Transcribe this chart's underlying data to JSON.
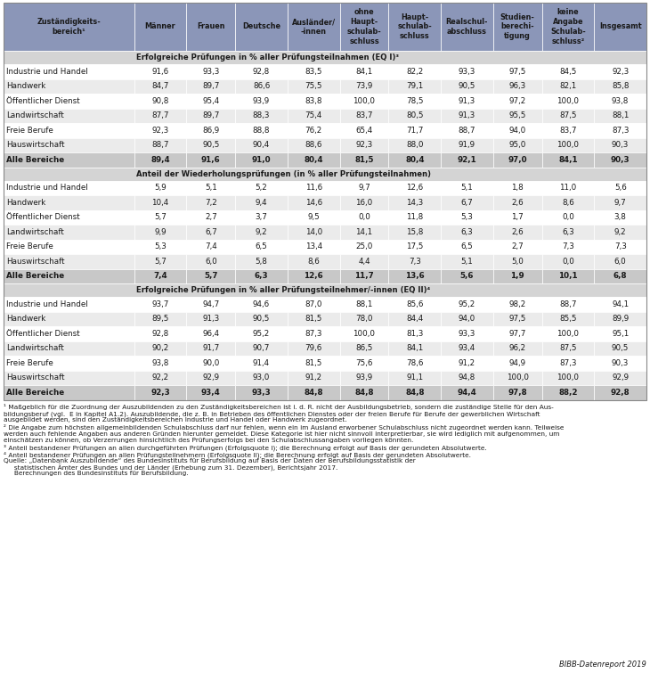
{
  "header_bg": "#8B96B8",
  "section_bg": "#D4D4D4",
  "row_light": "#FFFFFF",
  "row_dark": "#EBEBEB",
  "bold_row_bg": "#C8C8C8",
  "col_headers": [
    "Zuständigkeits-\nbereich¹",
    "Männer",
    "Frauen",
    "Deutsche",
    "Ausländer/\n-innen",
    "ohne\nHaupt-\nschulab-\nschluss",
    "Haupt-\nschulab-\nschluss",
    "Realschul-\nabschluss",
    "Studien-\nberechi-\ntigung",
    "keine\nAngabe\nSchulab-\nschluss²",
    "Insgesamt"
  ],
  "section1_title": "Erfolgreiche Prüfungen in % aller Prüfungsteilnahmen (EQ I)³",
  "section1_rows": [
    [
      "Industrie und Handel",
      "91,6",
      "93,3",
      "92,8",
      "83,5",
      "84,1",
      "82,2",
      "93,3",
      "97,5",
      "84,5",
      "92,3"
    ],
    [
      "Handwerk",
      "84,7",
      "89,7",
      "86,6",
      "75,5",
      "73,9",
      "79,1",
      "90,5",
      "96,3",
      "82,1",
      "85,8"
    ],
    [
      "Öffentlicher Dienst",
      "90,8",
      "95,4",
      "93,9",
      "83,8",
      "100,0",
      "78,5",
      "91,3",
      "97,2",
      "100,0",
      "93,8"
    ],
    [
      "Landwirtschaft",
      "87,7",
      "89,7",
      "88,3",
      "75,4",
      "83,7",
      "80,5",
      "91,3",
      "95,5",
      "87,5",
      "88,1"
    ],
    [
      "Freie Berufe",
      "92,3",
      "86,9",
      "88,8",
      "76,2",
      "65,4",
      "71,7",
      "88,7",
      "94,0",
      "83,7",
      "87,3"
    ],
    [
      "Hauswirtschaft",
      "88,7",
      "90,5",
      "90,4",
      "88,6",
      "92,3",
      "88,0",
      "91,9",
      "95,0",
      "100,0",
      "90,3"
    ],
    [
      "Alle Bereiche",
      "89,4",
      "91,6",
      "91,0",
      "80,4",
      "81,5",
      "80,4",
      "92,1",
      "97,0",
      "84,1",
      "90,3"
    ]
  ],
  "section1_bold_row": 6,
  "section2_title": "Anteil der Wiederholungsprüfungen (in % aller Prüfungsteilnahmen)",
  "section2_rows": [
    [
      "Industrie und Handel",
      "5,9",
      "5,1",
      "5,2",
      "11,6",
      "9,7",
      "12,6",
      "5,1",
      "1,8",
      "11,0",
      "5,6"
    ],
    [
      "Handwerk",
      "10,4",
      "7,2",
      "9,4",
      "14,6",
      "16,0",
      "14,3",
      "6,7",
      "2,6",
      "8,6",
      "9,7"
    ],
    [
      "Öffentlicher Dienst",
      "5,7",
      "2,7",
      "3,7",
      "9,5",
      "0,0",
      "11,8",
      "5,3",
      "1,7",
      "0,0",
      "3,8"
    ],
    [
      "Landwirtschaft",
      "9,9",
      "6,7",
      "9,2",
      "14,0",
      "14,1",
      "15,8",
      "6,3",
      "2,6",
      "6,3",
      "9,2"
    ],
    [
      "Freie Berufe",
      "5,3",
      "7,4",
      "6,5",
      "13,4",
      "25,0",
      "17,5",
      "6,5",
      "2,7",
      "7,3",
      "7,3"
    ],
    [
      "Hauswirtschaft",
      "5,7",
      "6,0",
      "5,8",
      "8,6",
      "4,4",
      "7,3",
      "5,1",
      "5,0",
      "0,0",
      "6,0"
    ],
    [
      "Alle Bereiche",
      "7,4",
      "5,7",
      "6,3",
      "12,6",
      "11,7",
      "13,6",
      "5,6",
      "1,9",
      "10,1",
      "6,8"
    ]
  ],
  "section2_bold_row": 6,
  "section3_title": "Erfolgreiche Prüfungen in % aller Prüfungsteilnehmer/-innen (EQ II)⁴",
  "section3_rows": [
    [
      "Industrie und Handel",
      "93,7",
      "94,7",
      "94,6",
      "87,0",
      "88,1",
      "85,6",
      "95,2",
      "98,2",
      "88,7",
      "94,1"
    ],
    [
      "Handwerk",
      "89,5",
      "91,3",
      "90,5",
      "81,5",
      "78,0",
      "84,4",
      "94,0",
      "97,5",
      "85,5",
      "89,9"
    ],
    [
      "Öffentlicher Dienst",
      "92,8",
      "96,4",
      "95,2",
      "87,3",
      "100,0",
      "81,3",
      "93,3",
      "97,7",
      "100,0",
      "95,1"
    ],
    [
      "Landwirtschaft",
      "90,2",
      "91,7",
      "90,7",
      "79,6",
      "86,5",
      "84,1",
      "93,4",
      "96,2",
      "87,5",
      "90,5"
    ],
    [
      "Freie Berufe",
      "93,8",
      "90,0",
      "91,4",
      "81,5",
      "75,6",
      "78,6",
      "91,2",
      "94,9",
      "87,3",
      "90,3"
    ],
    [
      "Hauswirtschaft",
      "92,2",
      "92,9",
      "93,0",
      "91,2",
      "93,9",
      "91,1",
      "94,8",
      "100,0",
      "100,0",
      "92,9"
    ],
    [
      "Alle Bereiche",
      "92,3",
      "93,4",
      "93,3",
      "84,8",
      "84,8",
      "84,8",
      "94,4",
      "97,8",
      "88,2",
      "92,8"
    ]
  ],
  "section3_bold_row": 6,
  "footnotes": [
    "¹ Maßgeblich für die Zuordnung der Auszubildenden zu den Zuständigkeitsbereichen ist i. d. R. nicht der Ausbildungsbetrieb, sondern die zuständige Stelle für den Aus-",
    "bildungsberuf (vgl.  E in Kapitel A1.2). Auszubildende, die z. B. in Betrieben des öffentlichen Dienstes oder der freien Berufe für Berufe der gewerblichen Wirtschaft",
    "ausgebildet werden, sind den Zuständigkeitsbereichen Industrie und Handel oder Handwerk zugeordnet.",
    "² Die Angabe zum höchsten allgemeinbildenden Schulabschluss darf nur fehlen, wenn ein im Ausland erworbener Schulabschluss nicht zugeordnet werden kann. Teilweise",
    "werden auch fehlende Angaben aus anderen Gründen hierunter gemeldet. Diese Kategorie ist hier nicht sinnvoll interpretierbar, sie wird lediglich mit aufgenommen, um",
    "einschätzen zu können, ob Verzerrungen hinsichtlich des Prüfungserfolgs bei den Schulabschlussangaben vorliegen könnten.",
    "³ Anteil bestandener Prüfungen an allen durchgeführten Prüfungen (Erfolgsquote I); die Berechnung erfolgt auf Basis der gerundeten Absolutwerte.",
    "⁴ Anteil bestandener Prüfungen an allen Prüfungsteilnehmern (Erfolgsquote II); die Berechnung erfolgt auf Basis der gerundeten Absolutwerte.",
    "Quelle: „Datenbank Auszubildende“ des Bundesinstituts für Berufsbildung auf Basis der Daten der Berufsbildungsstatistik der",
    "     statistischen Ämter des Bundes und der Länder (Erhebung zum 31. Dezember), Berichtsjahr 2017.",
    "     Berechnungen des Bundesinstituts für Berufsbildung."
  ],
  "footnote1b_link_text": "E",
  "footnote1b_link_color": "#0070C0",
  "source_tag": "BIBB-Datenreport 2019"
}
